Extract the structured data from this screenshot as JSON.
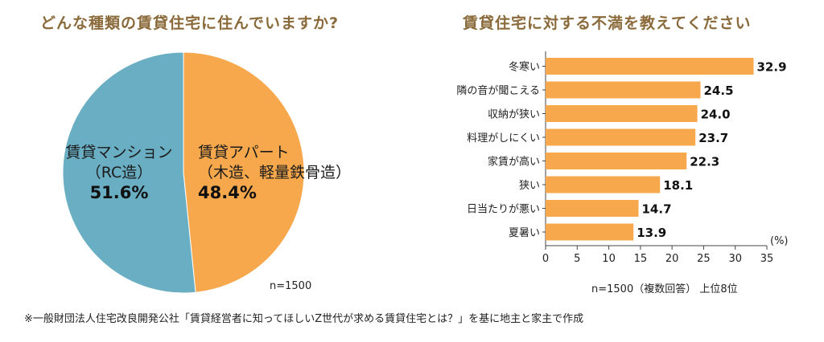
{
  "pie_chart": {
    "title": "どんな種類の賃貸住宅に住んでいますか?",
    "note": "n=1500"
  },
  "bar_chart": {
    "title": "賃貸住宅に対する不満を教えてください",
    "unit_label": "(%)",
    "note": "n=1500（複数回答） 上位8位"
  },
  "source": "※一般財団法人住宅改良開発公社「賃貸経営者に知ってほしいZ世代が求める賃貸住宅とは？」を基に地主と家主で作成",
  "colors": {
    "orange": "#f7a84c",
    "teal": "#6aaec3",
    "grid": "#444444"
  },
  "chart_data": [
    {
      "type": "pie",
      "title": "どんな種類の賃貸住宅に住んでいますか?",
      "slices": [
        {
          "label_line1": "賃貸アパート",
          "label_line2": "（木造、軽量鉄骨造）",
          "pct_text": "48.4%",
          "value": 48.4,
          "color": "#f7a84c"
        },
        {
          "label_line1": "賃貸マンション",
          "label_line2": "（RC造）",
          "pct_text": "51.6%",
          "value": 51.6,
          "color": "#6aaec3"
        }
      ]
    },
    {
      "type": "bar",
      "orientation": "horizontal",
      "title": "賃貸住宅に対する不満を教えてください",
      "categories": [
        "冬寒い",
        "隣の音が聞こえる",
        "収納が狭い",
        "料理がしにくい",
        "家賃が高い",
        "狭い",
        "日当たりが悪い",
        "夏暑い"
      ],
      "values": [
        32.9,
        24.5,
        24.0,
        23.7,
        22.3,
        18.1,
        14.7,
        13.9
      ],
      "value_labels": [
        "32.9",
        "24.5",
        "24.0",
        "23.7",
        "22.3",
        "18.1",
        "14.7",
        "13.9"
      ],
      "xlim": [
        0,
        35
      ],
      "xticks": [
        0,
        5,
        10,
        15,
        20,
        25,
        30,
        35
      ],
      "xlabel": "(%)",
      "color": "#f7a84c"
    }
  ]
}
